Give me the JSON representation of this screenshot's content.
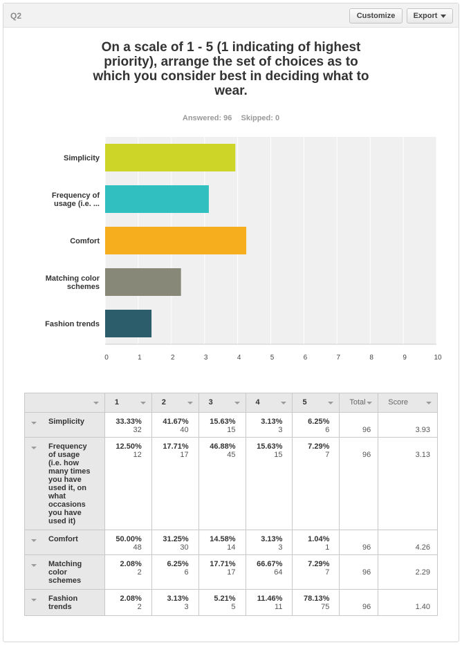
{
  "header": {
    "question_label": "Q2",
    "customize_label": "Customize",
    "export_label": "Export"
  },
  "question": {
    "title": "On a scale of 1 - 5 (1 indicating of highest priority), arrange the set of choices as to which you consider best in deciding what to wear.",
    "answered": "Answered: 96",
    "skipped": "Skipped: 0"
  },
  "colors": {
    "simplicity": "#cdd628",
    "frequency": "#31bfbf",
    "comfort": "#f6ad1e",
    "matching": "#888878",
    "fashion": "#2c5d6b",
    "plot_bg": "#f0f0f0",
    "gridline": "#ffffff"
  },
  "chart_data": {
    "type": "bar",
    "orientation": "horizontal",
    "categories": [
      [
        "Simplicity"
      ],
      [
        "Frequency of",
        "usage (i.e. ..."
      ],
      [
        "Comfort"
      ],
      [
        "Matching color",
        "schemes"
      ],
      [
        "Fashion trends"
      ]
    ],
    "values": [
      3.93,
      3.13,
      4.26,
      2.29,
      1.4
    ],
    "xlim": [
      0,
      10
    ],
    "xticks": [
      "0",
      "1",
      "2",
      "3",
      "4",
      "5",
      "6",
      "7",
      "8",
      "9",
      "10"
    ],
    "grid": true,
    "legend": "none"
  },
  "table": {
    "columns": [
      "",
      "1",
      "2",
      "3",
      "4",
      "5",
      "Total",
      "Score"
    ],
    "rows": [
      {
        "label": [
          "Simplicity"
        ],
        "cells": [
          [
            "33.33%",
            "32"
          ],
          [
            "41.67%",
            "40"
          ],
          [
            "15.63%",
            "15"
          ],
          [
            "3.13%",
            "3"
          ],
          [
            "6.25%",
            "6"
          ]
        ],
        "total": "96",
        "score": "3.93"
      },
      {
        "label": [
          "Frequency",
          "of usage",
          "(i.e. how",
          "many times",
          "you have",
          "used it, on",
          "what",
          "occasions",
          "you have",
          "used it)"
        ],
        "cells": [
          [
            "12.50%",
            "12"
          ],
          [
            "17.71%",
            "17"
          ],
          [
            "46.88%",
            "45"
          ],
          [
            "15.63%",
            "15"
          ],
          [
            "7.29%",
            "7"
          ]
        ],
        "total": "96",
        "score": "3.13"
      },
      {
        "label": [
          "Comfort"
        ],
        "cells": [
          [
            "50.00%",
            "48"
          ],
          [
            "31.25%",
            "30"
          ],
          [
            "14.58%",
            "14"
          ],
          [
            "3.13%",
            "3"
          ],
          [
            "1.04%",
            "1"
          ]
        ],
        "total": "96",
        "score": "4.26"
      },
      {
        "label": [
          "Matching",
          "color",
          "schemes"
        ],
        "cells": [
          [
            "2.08%",
            "2"
          ],
          [
            "6.25%",
            "6"
          ],
          [
            "17.71%",
            "17"
          ],
          [
            "66.67%",
            "64"
          ],
          [
            "7.29%",
            "7"
          ]
        ],
        "total": "96",
        "score": "2.29"
      },
      {
        "label": [
          "Fashion",
          "trends"
        ],
        "cells": [
          [
            "2.08%",
            "2"
          ],
          [
            "3.13%",
            "3"
          ],
          [
            "5.21%",
            "5"
          ],
          [
            "11.46%",
            "11"
          ],
          [
            "78.13%",
            "75"
          ]
        ],
        "total": "96",
        "score": "1.40"
      }
    ]
  }
}
